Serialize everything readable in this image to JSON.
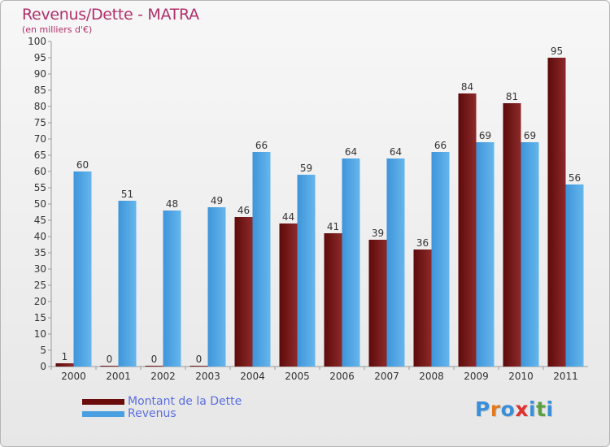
{
  "chart_data": {
    "type": "bar",
    "title": "Revenus/Dette - MATRA",
    "subtitle": "(en milliers d'€)",
    "categories": [
      "2000",
      "2001",
      "2002",
      "2003",
      "2004",
      "2005",
      "2006",
      "2007",
      "2008",
      "2009",
      "2010",
      "2011"
    ],
    "series": [
      {
        "name": "Montant de la Dette",
        "color": "#7a1818",
        "values": [
          1,
          0,
          0,
          0,
          46,
          44,
          41,
          39,
          36,
          84,
          81,
          95
        ]
      },
      {
        "name": "Revenus",
        "color": "#4a9fe0",
        "values": [
          60,
          51,
          48,
          49,
          66,
          59,
          64,
          64,
          66,
          69,
          69,
          56
        ]
      }
    ],
    "ylim": [
      0,
      100
    ],
    "ytick_step": 5,
    "grid": false,
    "legend_position": "bottom-left"
  },
  "logo": {
    "letters": [
      "P",
      "r",
      "o",
      "x",
      "i",
      "t",
      "i"
    ],
    "colors": [
      "#3a8fd8",
      "#e07a20",
      "#3a8fd8",
      "#e03030",
      "#3a8fd8",
      "#5aa040",
      "#3a8fd8"
    ]
  }
}
